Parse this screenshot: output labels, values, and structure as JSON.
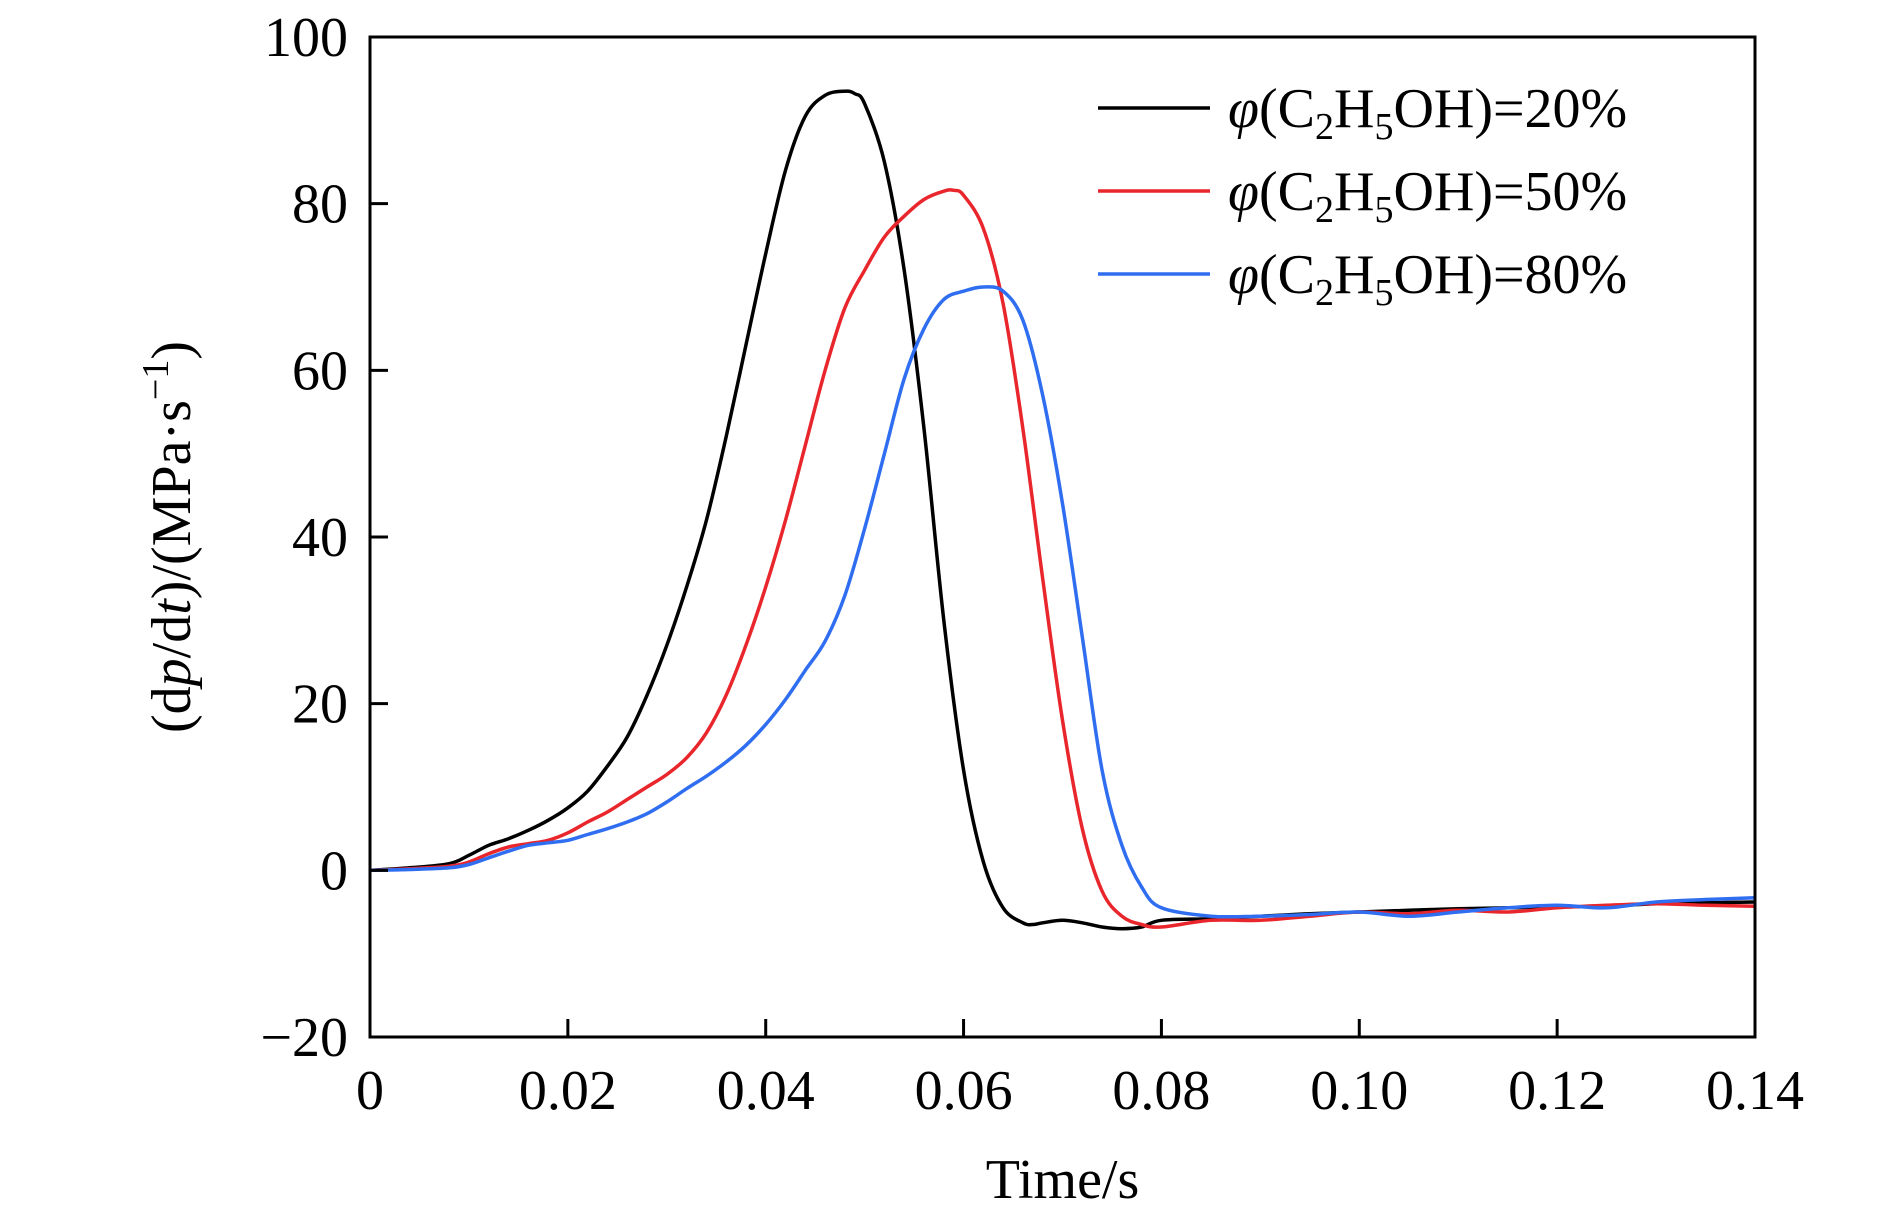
{
  "chart_data": {
    "type": "line",
    "title": "",
    "xlabel": "Time/s",
    "ylabel": {
      "parts": [
        "(d",
        "p",
        "/d",
        "t",
        ")/(MPa·s",
        "−1",
        ")"
      ]
    },
    "xlim": [
      0,
      0.14
    ],
    "ylim": [
      -20,
      100
    ],
    "x_ticks": [
      0,
      0.02,
      0.04,
      0.06,
      0.08,
      0.1,
      0.12,
      0.14
    ],
    "x_tick_labels": [
      "0",
      "0.02",
      "0.04",
      "0.06",
      "0.08",
      "0.10",
      "0.12",
      "0.14"
    ],
    "y_ticks": [
      -20,
      0,
      20,
      40,
      60,
      80,
      100
    ],
    "y_tick_labels": [
      "−20",
      "0",
      "20",
      "40",
      "60",
      "80",
      "100"
    ],
    "grid": false,
    "legend_position": "top-right",
    "series": [
      {
        "name": "φ(C2H5OH)=20%",
        "legend": {
          "phi": "φ",
          "open": "(C",
          "sub1": "2",
          "mid": "H",
          "sub2": "5",
          "close": "OH)=20%"
        },
        "color": "#000000",
        "x": [
          0,
          0.004,
          0.008,
          0.01,
          0.012,
          0.014,
          0.016,
          0.018,
          0.02,
          0.022,
          0.024,
          0.026,
          0.028,
          0.03,
          0.032,
          0.034,
          0.036,
          0.038,
          0.04,
          0.042,
          0.044,
          0.046,
          0.048,
          0.049,
          0.05,
          0.052,
          0.054,
          0.056,
          0.058,
          0.06,
          0.062,
          0.064,
          0.066,
          0.067,
          0.068,
          0.07,
          0.072,
          0.074,
          0.076,
          0.078,
          0.08,
          0.085,
          0.09,
          0.095,
          0.1,
          0.105,
          0.11,
          0.115,
          0.12,
          0.125,
          0.13,
          0.135,
          0.14
        ],
        "y": [
          0,
          0.3,
          0.8,
          1.8,
          3.0,
          3.8,
          4.8,
          6.0,
          7.5,
          9.5,
          12.5,
          16.0,
          21.0,
          27.0,
          34.0,
          42.0,
          52.0,
          63.0,
          74.0,
          84.0,
          90.5,
          93.0,
          93.5,
          93.2,
          92.0,
          85.0,
          72.0,
          53.0,
          30.0,
          12.0,
          1.0,
          -4.5,
          -6.3,
          -6.5,
          -6.3,
          -6.0,
          -6.3,
          -6.8,
          -7.0,
          -6.8,
          -6.0,
          -5.8,
          -5.5,
          -5.2,
          -5.0,
          -4.8,
          -4.6,
          -4.5,
          -4.4,
          -4.3,
          -4.0,
          -3.9,
          -3.8
        ]
      },
      {
        "name": "φ(C2H5OH)=50%",
        "legend": {
          "phi": "φ",
          "open": "(C",
          "sub1": "2",
          "mid": "H",
          "sub2": "5",
          "close": "OH)=50%"
        },
        "color": "#e8262c",
        "x": [
          0,
          0.004,
          0.008,
          0.01,
          0.012,
          0.014,
          0.016,
          0.018,
          0.02,
          0.022,
          0.024,
          0.026,
          0.028,
          0.03,
          0.032,
          0.034,
          0.036,
          0.038,
          0.04,
          0.042,
          0.044,
          0.046,
          0.048,
          0.05,
          0.052,
          0.054,
          0.056,
          0.058,
          0.059,
          0.06,
          0.062,
          0.064,
          0.066,
          0.068,
          0.07,
          0.072,
          0.074,
          0.076,
          0.078,
          0.08,
          0.085,
          0.09,
          0.095,
          0.1,
          0.105,
          0.11,
          0.115,
          0.12,
          0.125,
          0.13,
          0.135,
          0.14
        ],
        "y": [
          0,
          0.2,
          0.5,
          1.0,
          2.0,
          2.8,
          3.2,
          3.6,
          4.5,
          5.8,
          7.0,
          8.5,
          10.0,
          11.5,
          13.5,
          16.5,
          21.0,
          27.0,
          34.0,
          42.0,
          51.0,
          60.0,
          67.5,
          72.0,
          76.0,
          78.5,
          80.5,
          81.5,
          81.6,
          81.0,
          77.0,
          68.0,
          53.0,
          35.0,
          18.0,
          5.0,
          -2.5,
          -5.5,
          -6.5,
          -6.8,
          -6.0,
          -6.0,
          -5.5,
          -5.0,
          -5.2,
          -4.8,
          -5.0,
          -4.5,
          -4.2,
          -4.0,
          -4.2,
          -4.3
        ]
      },
      {
        "name": "φ(C2H5OH)=80%",
        "legend": {
          "phi": "φ",
          "open": "(C",
          "sub1": "2",
          "mid": "H",
          "sub2": "5",
          "close": "OH)=80%"
        },
        "color": "#2f6ef0",
        "x": [
          0,
          0.004,
          0.008,
          0.01,
          0.012,
          0.014,
          0.016,
          0.018,
          0.02,
          0.022,
          0.024,
          0.026,
          0.028,
          0.03,
          0.032,
          0.034,
          0.036,
          0.038,
          0.04,
          0.042,
          0.044,
          0.046,
          0.048,
          0.05,
          0.052,
          0.054,
          0.056,
          0.058,
          0.06,
          0.062,
          0.064,
          0.066,
          0.068,
          0.07,
          0.072,
          0.074,
          0.076,
          0.078,
          0.08,
          0.085,
          0.09,
          0.095,
          0.1,
          0.105,
          0.11,
          0.115,
          0.12,
          0.125,
          0.13,
          0.135,
          0.14
        ],
        "y": [
          0,
          0.1,
          0.3,
          0.7,
          1.5,
          2.3,
          3.0,
          3.3,
          3.6,
          4.3,
          5.0,
          5.8,
          6.8,
          8.2,
          9.8,
          11.3,
          13.0,
          15.0,
          17.5,
          20.5,
          24.0,
          27.5,
          33.0,
          41.0,
          50.0,
          59.0,
          65.0,
          68.5,
          69.5,
          70.0,
          69.5,
          66.0,
          57.0,
          44.0,
          28.0,
          12.0,
          3.0,
          -2.0,
          -4.5,
          -5.5,
          -5.5,
          -5.3,
          -5.0,
          -5.5,
          -5.0,
          -4.5,
          -4.2,
          -4.5,
          -3.8,
          -3.5,
          -3.3
        ]
      }
    ]
  }
}
